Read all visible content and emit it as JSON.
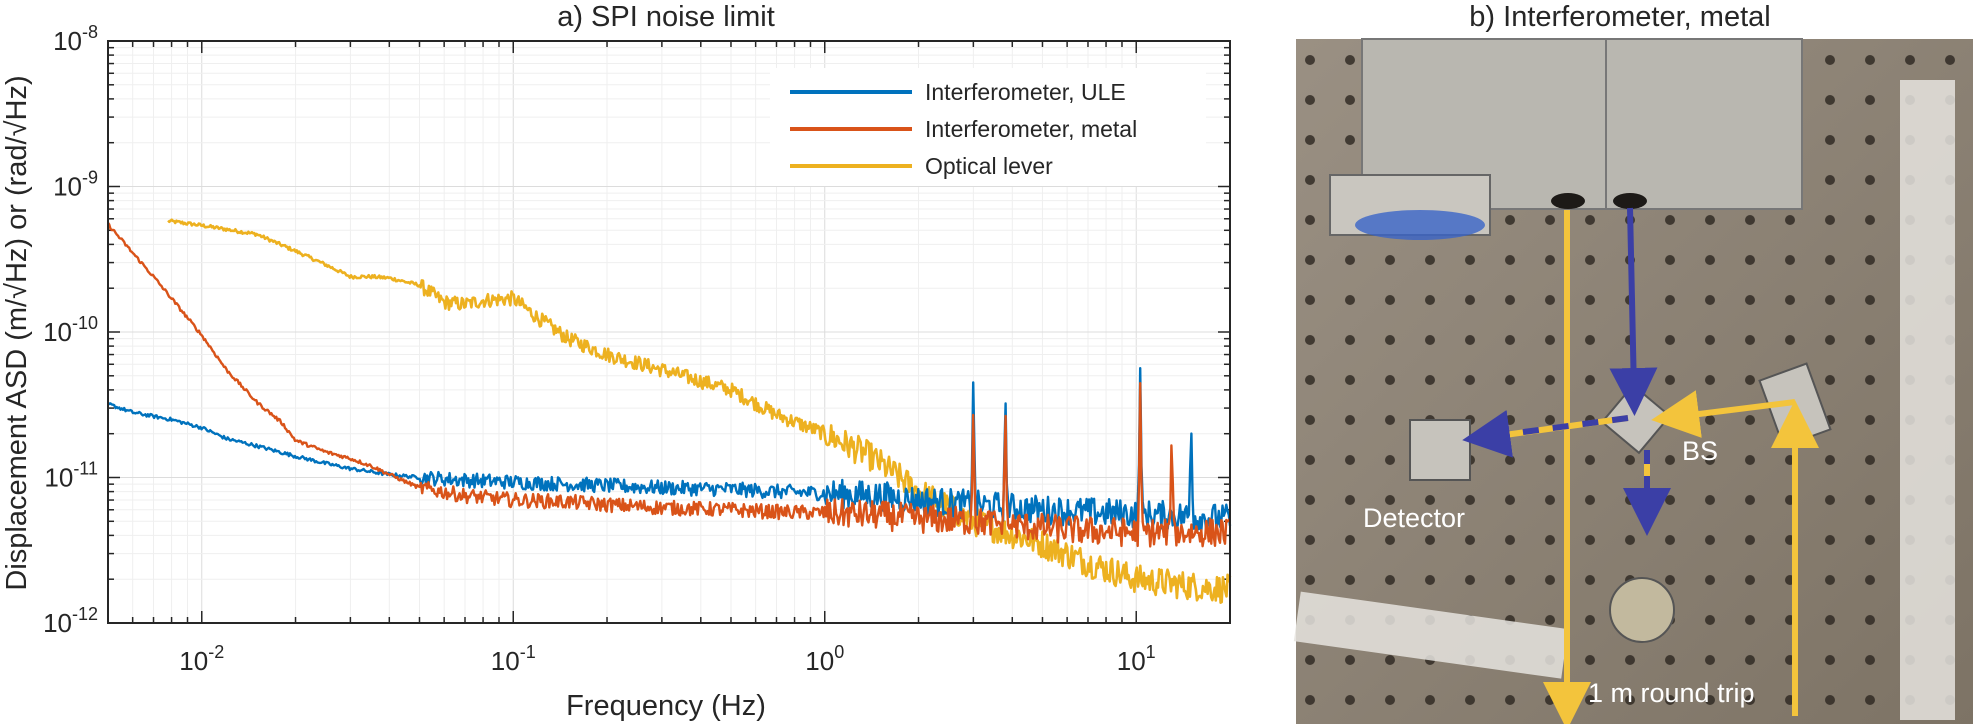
{
  "chart_data": {
    "type": "line",
    "title": "a) SPI noise limit",
    "xlabel": "Frequency (Hz)",
    "ylabel": "Displacement ASD (m/√Hz) or (rad/√Hz)",
    "xscale": "log",
    "yscale": "log",
    "xlim": [
      0.005,
      20
    ],
    "ylim": [
      1e-12,
      1e-08
    ],
    "grid": true,
    "legend_position": "top-right",
    "x_ticks": [
      {
        "base": "10",
        "exp": "-2"
      },
      {
        "base": "10",
        "exp": "-1"
      },
      {
        "base": "10",
        "exp": "0"
      },
      {
        "base": "10",
        "exp": "1"
      }
    ],
    "y_ticks": [
      {
        "base": "10",
        "exp": "-12"
      },
      {
        "base": "10",
        "exp": "-11"
      },
      {
        "base": "10",
        "exp": "-10"
      },
      {
        "base": "10",
        "exp": "-9"
      },
      {
        "base": "10",
        "exp": "-8"
      }
    ],
    "series": [
      {
        "name": "Interferometer, ULE",
        "color": "#0072bd",
        "x": [
          0.005,
          0.006,
          0.008,
          0.01,
          0.012,
          0.015,
          0.02,
          0.025,
          0.03,
          0.04,
          0.05,
          0.07,
          0.1,
          0.15,
          0.2,
          0.3,
          0.5,
          0.7,
          1,
          1.5,
          2,
          3,
          5,
          7,
          10,
          15,
          20
        ],
        "y": [
          3.2e-11,
          2.8e-11,
          2.5e-11,
          2.2e-11,
          1.85e-11,
          1.65e-11,
          1.4e-11,
          1.25e-11,
          1.15e-11,
          1.05e-11,
          1e-11,
          9.6e-12,
          9.3e-12,
          9e-12,
          8.8e-12,
          8.5e-12,
          8.3e-12,
          8e-12,
          7.8e-12,
          7.5e-12,
          7e-12,
          6.5e-12,
          6e-12,
          5.8e-12,
          5.6e-12,
          5.4e-12,
          5.2e-12
        ],
        "peaks": [
          {
            "x": 3.0,
            "y": 5.5e-11
          },
          {
            "x": 3.8,
            "y": 4.2e-11
          },
          {
            "x": 10.3,
            "y": 5.7e-11
          },
          {
            "x": 15,
            "y": 2.5e-11
          }
        ]
      },
      {
        "name": "Interferometer, metal",
        "color": "#d95319",
        "x": [
          0.005,
          0.006,
          0.007,
          0.008,
          0.01,
          0.012,
          0.015,
          0.018,
          0.02,
          0.025,
          0.03,
          0.035,
          0.04,
          0.05,
          0.07,
          0.1,
          0.15,
          0.2,
          0.3,
          0.5,
          0.7,
          1,
          1.5,
          2,
          3,
          5,
          7,
          10,
          15,
          20
        ],
        "y": [
          5.5e-10,
          3.5e-10,
          2.4e-10,
          1.7e-10,
          9.5e-11,
          5.5e-11,
          3.3e-11,
          2.4e-11,
          1.8e-11,
          1.5e-11,
          1.35e-11,
          1.2e-11,
          1.05e-11,
          8.5e-12,
          7.5e-12,
          7e-12,
          6.8e-12,
          6.5e-12,
          6.2e-12,
          6e-12,
          5.8e-12,
          5.7e-12,
          5.5e-12,
          5.2e-12,
          5e-12,
          4.5e-12,
          4.3e-12,
          4.2e-12,
          4.2e-12,
          4.2e-12
        ],
        "peaks": [
          {
            "x": 3.0,
            "y": 3.2e-11
          },
          {
            "x": 3.8,
            "y": 3.5e-11
          },
          {
            "x": 10.3,
            "y": 4.5e-11
          },
          {
            "x": 13,
            "y": 2.2e-11
          }
        ]
      },
      {
        "name": "Optical lever",
        "color": "#edb120",
        "x": [
          0.0078,
          0.01,
          0.015,
          0.02,
          0.025,
          0.03,
          0.035,
          0.04,
          0.05,
          0.06,
          0.07,
          0.08,
          0.1,
          0.12,
          0.15,
          0.2,
          0.3,
          0.5,
          0.7,
          1,
          1.4,
          2,
          3,
          5,
          7,
          10,
          15,
          20
        ],
        "y": [
          5.8e-10,
          5.4e-10,
          4.7e-10,
          3.6e-10,
          2.9e-10,
          2.4e-10,
          2.4e-10,
          2.35e-10,
          2.1e-10,
          1.6e-10,
          1.55e-10,
          1.65e-10,
          1.7e-10,
          1.25e-10,
          9e-11,
          7e-11,
          5.5e-11,
          4e-11,
          2.7e-11,
          2e-11,
          1.4e-11,
          8e-12,
          5e-12,
          3.5e-12,
          2.6e-12,
          2e-12,
          1.8e-12,
          1.7e-12
        ],
        "peaks": []
      }
    ]
  },
  "photo": {
    "title": "b) Interferometer, metal",
    "labels": {
      "detector": "Detector",
      "bs": "BS",
      "round_trip": "1 m round trip"
    },
    "colors": {
      "plate": "#8f8576",
      "beam_yellow": "#f3c43c",
      "beam_blue": "#3b3fa6"
    }
  }
}
